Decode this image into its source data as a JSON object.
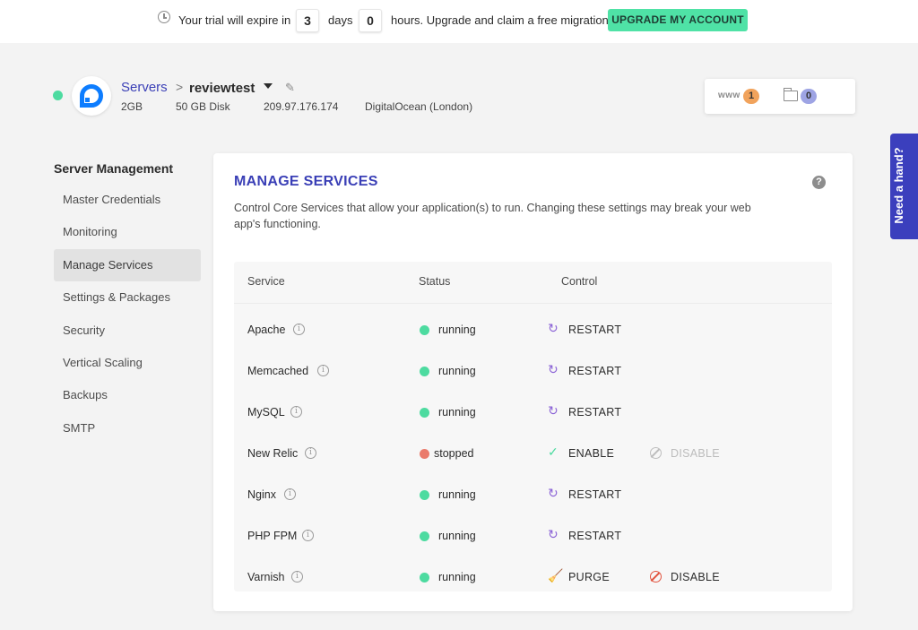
{
  "trial": {
    "prefix": "Your trial will expire in",
    "days_value": "3",
    "days_label": "days",
    "hours_value": "0",
    "hours_label": "hours. Upgrade and claim a free migration",
    "upgrade_label": "UPGRADE MY ACCOUNT"
  },
  "server": {
    "breadcrumb_parent": "Servers",
    "separator": ">",
    "name": "reviewtest",
    "ram": "2GB",
    "disk": "50 GB Disk",
    "ip": "209.97.176.174",
    "provider": "DigitalOcean (London)",
    "status_color": "#4ddba0"
  },
  "stats": {
    "www_label": "www",
    "www_count": "1",
    "folder_count": "0"
  },
  "help_tab": {
    "label": "Need a hand?"
  },
  "sidebar": {
    "title": "Server Management",
    "items": [
      {
        "label": "Master Credentials",
        "active": false
      },
      {
        "label": "Monitoring",
        "active": false
      },
      {
        "label": "Manage Services",
        "active": true
      },
      {
        "label": "Settings & Packages",
        "active": false
      },
      {
        "label": "Security",
        "active": false
      },
      {
        "label": "Vertical Scaling",
        "active": false
      },
      {
        "label": "Backups",
        "active": false
      },
      {
        "label": "SMTP",
        "active": false
      }
    ]
  },
  "main": {
    "title": "MANAGE SERVICES",
    "help_icon": "?",
    "description": "Control Core Services that allow your application(s) to run. Changing these settings may break your web app's functioning.",
    "table": {
      "headers": {
        "service": "Service",
        "status": "Status",
        "control": "Control"
      },
      "rows": [
        {
          "service": "Apache",
          "status": "running",
          "control": "RESTART",
          "control_icon": "refresh-icon"
        },
        {
          "service": "Memcached",
          "status": "running",
          "control": "RESTART",
          "control_icon": "refresh-icon"
        },
        {
          "service": "MySQL",
          "status": "running",
          "control": "RESTART",
          "control_icon": "refresh-icon"
        },
        {
          "service": "New Relic",
          "status": "stopped",
          "control": "ENABLE",
          "control_icon": "check-icon",
          "secondary": "DISABLE",
          "secondary_enabled": false
        },
        {
          "service": "Nginx",
          "status": "running",
          "control": "RESTART",
          "control_icon": "refresh-icon"
        },
        {
          "service": "PHP FPM",
          "status": "running",
          "control": "RESTART",
          "control_icon": "refresh-icon"
        },
        {
          "service": "Varnish",
          "status": "running",
          "control": "PURGE",
          "control_icon": "broom-icon",
          "secondary": "DISABLE",
          "secondary_enabled": true
        }
      ]
    }
  },
  "colors": {
    "accent": "#3a3fb6",
    "running": "#4ddba0",
    "stopped": "#ea7b6c",
    "upgrade": "#4fe2a6",
    "disable_active": "#e2533e"
  }
}
